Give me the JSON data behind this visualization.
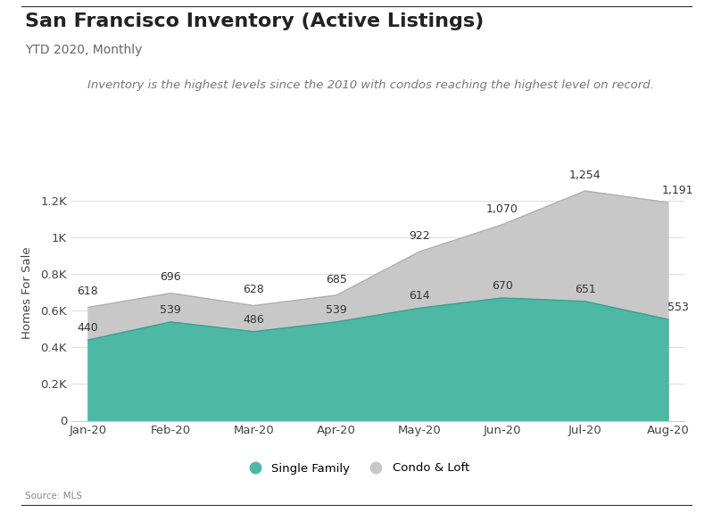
{
  "title": "San Francisco Inventory (Active Listings)",
  "subtitle": "YTD 2020, Monthly",
  "annotation": "Inventory is the highest levels since the 2010 with condos reaching the highest level on record.",
  "source": "Source: MLS",
  "months": [
    "Jan-20",
    "Feb-20",
    "Mar-20",
    "Apr-20",
    "May-20",
    "Jun-20",
    "Jul-20",
    "Aug-20"
  ],
  "single_family": [
    440,
    539,
    486,
    539,
    614,
    670,
    651,
    553
  ],
  "condo_loft": [
    618,
    696,
    628,
    685,
    922,
    1070,
    1254,
    1191
  ],
  "sf_color": "#4db8a4",
  "condo_color": "#c8c8c8",
  "sf_label": "Single Family",
  "condo_label": "Condo & Loft",
  "ylabel": "Homes For Sale",
  "ylim": [
    0,
    1400
  ],
  "yticks": [
    0,
    200,
    400,
    600,
    800,
    1000,
    1200
  ],
  "ytick_labels": [
    "0",
    "0.2K",
    "0.4K",
    "0.6K",
    "0.8K",
    "1K",
    "1.2K"
  ],
  "background_color": "#ffffff",
  "title_fontsize": 16,
  "subtitle_fontsize": 10,
  "annotation_fontsize": 9.5,
  "source_fontsize": 7.5,
  "label_fontsize": 9
}
